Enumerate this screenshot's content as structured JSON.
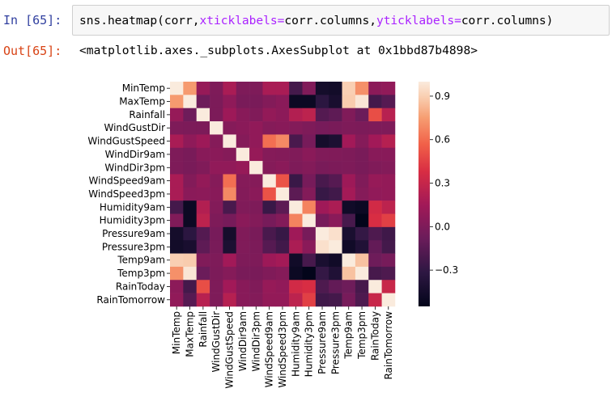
{
  "cell_in": {
    "prompt": "In [65]:",
    "code_prefix": "sns.heatmap(corr,",
    "kw_xticks": "xticklabels",
    "eq1": "=",
    "mid": "corr.columns,",
    "kw_yticks": "yticklabels",
    "eq2": "=",
    "suffix": "corr.columns)"
  },
  "cell_out": {
    "prompt": "Out[65]:",
    "text": "<matplotlib.axes._subplots.AxesSubplot at 0x1bbd87b4898>"
  },
  "colors": {
    "input_bg": "#f7f7f7",
    "prompt_in": "#303f9f",
    "prompt_out": "#d84315",
    "keyword": "#aa22ff"
  },
  "chart_data": {
    "type": "heatmap",
    "title": "",
    "xlabel": "",
    "ylabel": "",
    "labels": [
      "MinTemp",
      "MaxTemp",
      "Rainfall",
      "WindGustDir",
      "WindGustSpeed",
      "WindDir9am",
      "WindDir3pm",
      "WindSpeed9am",
      "WindSpeed3pm",
      "Humidity9am",
      "Humidity3pm",
      "Pressure9am",
      "Pressure3pm",
      "Temp9am",
      "Temp3pm",
      "RainToday",
      "RainTomorrow"
    ],
    "colorbar_ticks": [
      "0.9",
      "0.6",
      "0.3",
      "0.0",
      "−0.3"
    ],
    "colorbar_tick_values": [
      0.9,
      0.6,
      0.3,
      0.0,
      -0.3
    ],
    "vmin": -0.55,
    "vmax": 1.0,
    "colormap": "rocket",
    "values": [
      [
        1.0,
        0.74,
        0.1,
        0.0,
        0.18,
        0.0,
        0.0,
        0.18,
        0.18,
        -0.23,
        0.01,
        -0.45,
        -0.46,
        0.9,
        0.71,
        0.06,
        0.08
      ],
      [
        0.74,
        1.0,
        -0.07,
        -0.01,
        0.07,
        -0.02,
        -0.02,
        0.02,
        0.05,
        -0.5,
        -0.5,
        -0.33,
        -0.43,
        0.89,
        0.98,
        -0.23,
        -0.16
      ],
      [
        0.1,
        -0.07,
        1.0,
        -0.01,
        0.13,
        0.04,
        0.01,
        0.09,
        0.06,
        0.22,
        0.26,
        -0.17,
        -0.13,
        0.01,
        -0.08,
        0.5,
        0.24
      ],
      [
        0.0,
        -0.01,
        -0.01,
        1.0,
        0.03,
        0.05,
        0.08,
        0.03,
        0.04,
        0.02,
        0.0,
        -0.03,
        -0.02,
        0.0,
        -0.01,
        0.0,
        0.0
      ],
      [
        0.18,
        0.07,
        0.13,
        0.03,
        1.0,
        0.03,
        0.08,
        0.61,
        0.69,
        -0.21,
        -0.03,
        -0.45,
        -0.41,
        0.15,
        0.03,
        0.15,
        0.23
      ],
      [
        0.0,
        -0.02,
        0.04,
        0.05,
        0.03,
        1.0,
        0.1,
        0.03,
        0.02,
        0.01,
        0.05,
        0.01,
        0.01,
        0.0,
        -0.02,
        0.04,
        0.04
      ],
      [
        0.0,
        -0.02,
        0.01,
        0.08,
        0.08,
        0.1,
        1.0,
        0.03,
        0.05,
        0.0,
        0.02,
        -0.02,
        -0.01,
        0.0,
        -0.02,
        0.01,
        0.02
      ],
      [
        0.18,
        0.02,
        0.09,
        0.03,
        0.61,
        0.03,
        0.03,
        1.0,
        0.52,
        -0.27,
        -0.03,
        -0.21,
        -0.16,
        0.13,
        0.01,
        0.1,
        0.09
      ],
      [
        0.18,
        0.05,
        0.06,
        0.04,
        0.69,
        0.02,
        0.05,
        0.52,
        1.0,
        -0.14,
        0.02,
        -0.28,
        -0.24,
        0.16,
        0.03,
        0.08,
        0.09
      ],
      [
        -0.23,
        -0.5,
        0.22,
        0.02,
        -0.21,
        0.01,
        0.0,
        -0.27,
        -0.14,
        1.0,
        0.67,
        0.14,
        0.19,
        -0.47,
        -0.5,
        0.35,
        0.26
      ],
      [
        0.01,
        -0.5,
        0.26,
        0.0,
        -0.03,
        0.05,
        0.02,
        -0.03,
        0.02,
        0.67,
        1.0,
        -0.03,
        0.05,
        -0.22,
        -0.56,
        0.38,
        0.45
      ],
      [
        -0.45,
        -0.33,
        -0.17,
        -0.03,
        -0.45,
        0.01,
        -0.02,
        -0.21,
        -0.28,
        0.14,
        -0.03,
        1.0,
        0.96,
        -0.42,
        -0.29,
        -0.19,
        -0.25
      ],
      [
        -0.46,
        -0.43,
        -0.13,
        -0.02,
        -0.41,
        0.01,
        -0.01,
        -0.16,
        -0.24,
        0.19,
        0.05,
        0.96,
        1.0,
        -0.47,
        -0.39,
        -0.11,
        -0.23
      ],
      [
        0.9,
        0.89,
        0.01,
        0.0,
        0.15,
        0.0,
        0.0,
        0.13,
        0.16,
        -0.47,
        -0.22,
        -0.42,
        -0.47,
        1.0,
        0.86,
        -0.07,
        -0.03
      ],
      [
        0.71,
        0.98,
        -0.08,
        -0.01,
        0.03,
        -0.02,
        -0.02,
        0.01,
        0.03,
        -0.5,
        -0.56,
        -0.29,
        -0.39,
        0.86,
        1.0,
        -0.22,
        -0.19
      ],
      [
        0.06,
        -0.23,
        0.5,
        0.0,
        0.15,
        0.04,
        0.01,
        0.1,
        0.08,
        0.35,
        0.38,
        -0.19,
        -0.11,
        -0.07,
        -0.22,
        1.0,
        0.31
      ],
      [
        0.08,
        -0.16,
        0.24,
        0.0,
        0.23,
        0.04,
        0.02,
        0.09,
        0.09,
        0.26,
        0.45,
        -0.25,
        -0.23,
        -0.03,
        -0.19,
        0.31,
        1.0
      ]
    ]
  }
}
